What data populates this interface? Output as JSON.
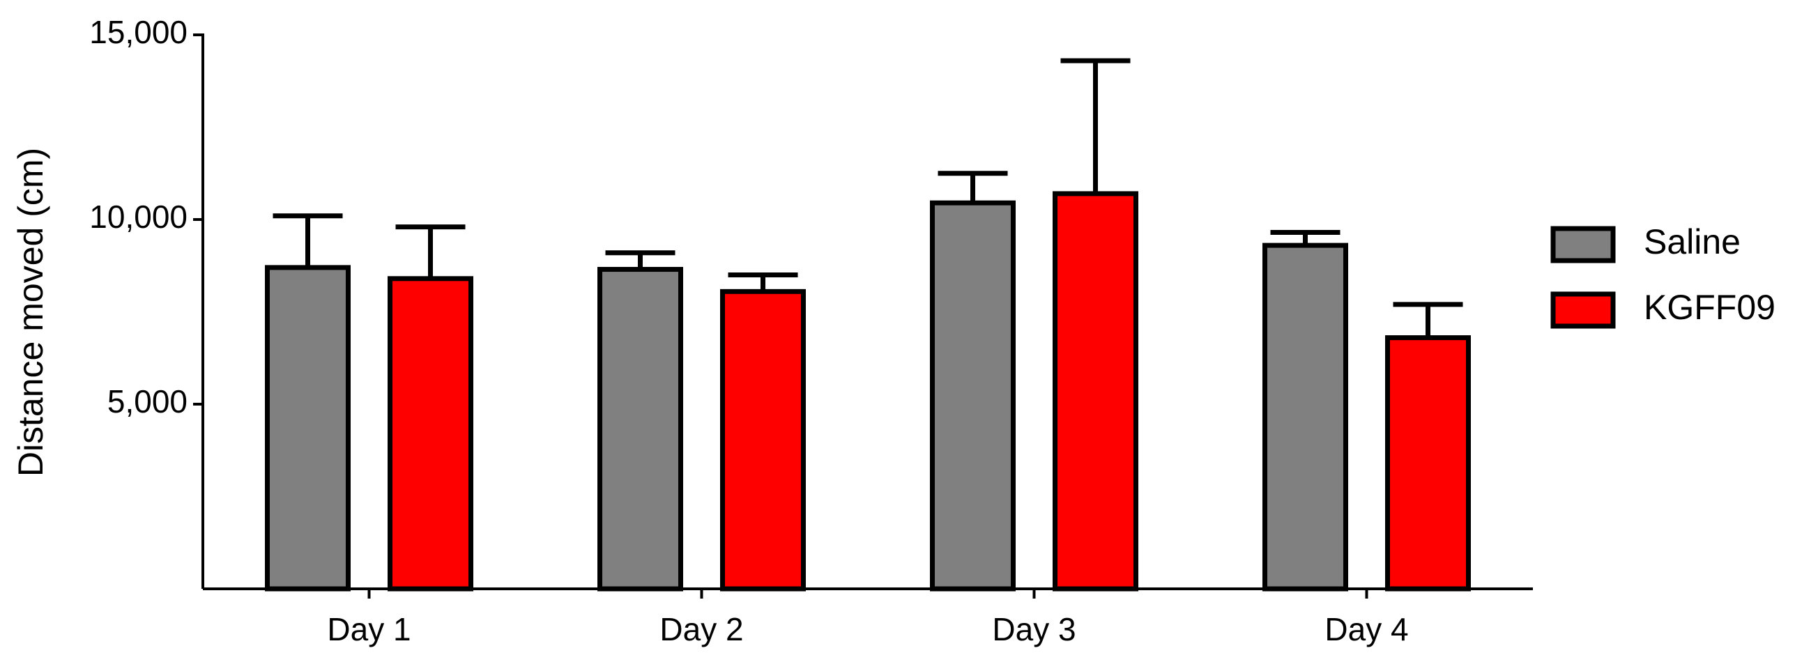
{
  "chart_data": {
    "type": "bar",
    "y_label": "Distance moved (cm)",
    "categories": [
      "Day 1",
      "Day 2",
      "Day 3",
      "Day 4"
    ],
    "series": [
      {
        "name": "Saline",
        "color": "#808080",
        "values": [
          8700,
          8650,
          10450,
          9300
        ],
        "errors": [
          1400,
          450,
          800,
          350
        ]
      },
      {
        "name": "KGFF09",
        "color": "#ff0000",
        "values": [
          8400,
          8050,
          10700,
          6800
        ],
        "errors": [
          1400,
          450,
          3600,
          900
        ]
      }
    ],
    "ylim": [
      0,
      15000
    ],
    "yticks": [
      {
        "value": 5000,
        "label": "5,000"
      },
      {
        "value": 10000,
        "label": "10,000"
      },
      {
        "value": 15000,
        "label": "15,000"
      }
    ],
    "legend": "right"
  }
}
